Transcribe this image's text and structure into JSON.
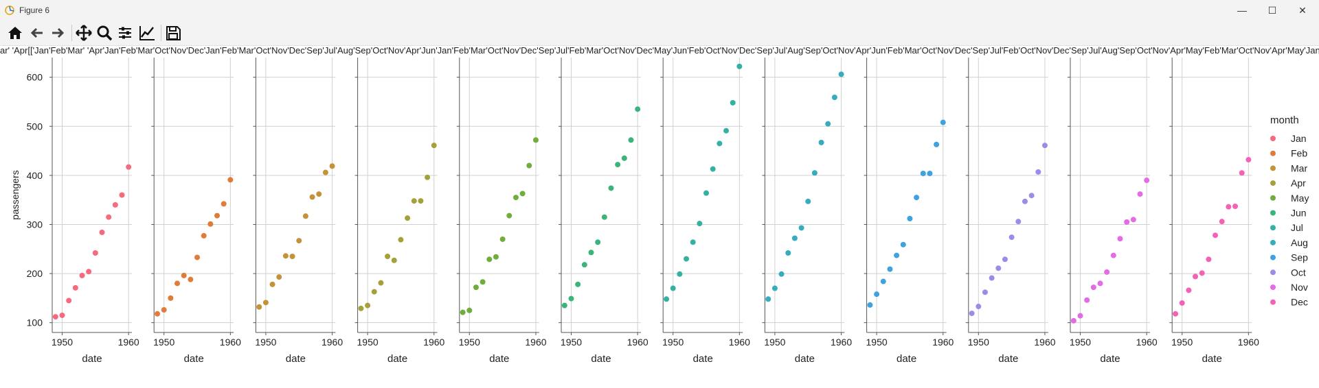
{
  "window": {
    "title": "Figure 6",
    "minimize_icon": "minimize-icon",
    "maximize_icon": "maximize-icon",
    "close_icon": "close-icon"
  },
  "toolbar": {
    "buttons": [
      "home-icon",
      "back-arrow-icon",
      "forward-arrow-icon",
      "pan-move-icon",
      "zoom-magnifier-icon",
      "configure-subplots-icon",
      "edit-axes-icon",
      "save-figure-icon"
    ]
  },
  "chart_data": {
    "type": "scatter",
    "ylabel": "passengers",
    "xlabel": "date",
    "x_ticks": [
      1950,
      1960
    ],
    "y_ticks": [
      100,
      200,
      300,
      400,
      500,
      600
    ],
    "ylim": [
      80,
      640
    ],
    "xlim": [
      1948.5,
      1960.5
    ],
    "grid": true,
    "legend": {
      "title": "month",
      "placement": "right"
    },
    "top_overlap_text": "ar' 'Apr[['Jan'Feb'Mar' 'Apr'Jan'Feb'Mar'Oct'Nov'Dec'Jan'Feb'Mar'Oct'Nov'Dec'Sep'Jul'Aug'Sep'Oct'Nov'Apr'Jun'Jan'Feb'Mar'Oct'Nov'Dec'Sep'Jul'Feb'Mar'Oct'Nov'Dec'May'Jun'Feb'Oct'Nov'Dec'Sep'Jul'Aug'Sep'Oct'Nov'Apr'Jun'Feb'Mar'Oct'Nov'Dec'Sep'Jul'Feb'Oct'Nov'Dec'Sep'Jul'Aug'Sep'Oct'Nov'Apr'May'Feb'Mar'Oct'Nov'Apr'May'Jan'Feb'Mar'Oct'Nov'Dec'Sep' 'Jul'' 'Oct' 'Nov' 'Dec'Sep' 'Oct' '",
    "series": [
      {
        "name": "Jan",
        "color": "#f7697d",
        "x": [
          1949,
          1950,
          1951,
          1952,
          1953,
          1954,
          1955,
          1956,
          1957,
          1958,
          1959,
          1960
        ],
        "y": [
          112,
          115,
          145,
          171,
          196,
          204,
          242,
          284,
          315,
          340,
          360,
          417
        ]
      },
      {
        "name": "Feb",
        "color": "#e07c3a",
        "x": [
          1949,
          1950,
          1951,
          1952,
          1953,
          1954,
          1955,
          1956,
          1957,
          1958,
          1959,
          1960
        ],
        "y": [
          118,
          126,
          150,
          180,
          196,
          188,
          233,
          277,
          301,
          318,
          342,
          391
        ]
      },
      {
        "name": "Mar",
        "color": "#c39338",
        "x": [
          1949,
          1950,
          1951,
          1952,
          1953,
          1954,
          1955,
          1956,
          1957,
          1958,
          1959,
          1960
        ],
        "y": [
          132,
          141,
          178,
          193,
          236,
          235,
          267,
          317,
          356,
          362,
          406,
          419
        ]
      },
      {
        "name": "Apr",
        "color": "#a6a03a",
        "x": [
          1949,
          1950,
          1951,
          1952,
          1953,
          1954,
          1955,
          1956,
          1957,
          1958,
          1959,
          1960
        ],
        "y": [
          129,
          135,
          163,
          181,
          235,
          227,
          269,
          313,
          348,
          348,
          396,
          461
        ]
      },
      {
        "name": "May",
        "color": "#6fad3c",
        "x": [
          1949,
          1950,
          1951,
          1952,
          1953,
          1954,
          1955,
          1956,
          1957,
          1958,
          1959,
          1960
        ],
        "y": [
          121,
          125,
          172,
          183,
          229,
          234,
          270,
          318,
          355,
          363,
          420,
          472
        ]
      },
      {
        "name": "Jun",
        "color": "#3bb47c",
        "x": [
          1949,
          1950,
          1951,
          1952,
          1953,
          1954,
          1955,
          1956,
          1957,
          1958,
          1959,
          1960
        ],
        "y": [
          135,
          149,
          178,
          218,
          243,
          264,
          315,
          374,
          422,
          435,
          472,
          535
        ]
      },
      {
        "name": "Jul",
        "color": "#35b1a3",
        "x": [
          1949,
          1950,
          1951,
          1952,
          1953,
          1954,
          1955,
          1956,
          1957,
          1958,
          1959,
          1960
        ],
        "y": [
          148,
          170,
          199,
          230,
          264,
          302,
          364,
          413,
          465,
          491,
          548,
          622
        ]
      },
      {
        "name": "Aug",
        "color": "#37acbe",
        "x": [
          1949,
          1950,
          1951,
          1952,
          1953,
          1954,
          1955,
          1956,
          1957,
          1958,
          1959,
          1960
        ],
        "y": [
          148,
          170,
          199,
          242,
          272,
          293,
          347,
          405,
          467,
          505,
          559,
          606
        ]
      },
      {
        "name": "Sep",
        "color": "#3ea2de",
        "x": [
          1949,
          1950,
          1951,
          1952,
          1953,
          1954,
          1955,
          1956,
          1957,
          1958,
          1959,
          1960
        ],
        "y": [
          136,
          158,
          184,
          209,
          237,
          259,
          312,
          355,
          404,
          404,
          463,
          508
        ]
      },
      {
        "name": "Oct",
        "color": "#9a8de8",
        "x": [
          1949,
          1950,
          1951,
          1952,
          1953,
          1954,
          1955,
          1956,
          1957,
          1958,
          1959,
          1960
        ],
        "y": [
          119,
          133,
          162,
          191,
          211,
          229,
          274,
          306,
          347,
          359,
          407,
          461
        ]
      },
      {
        "name": "Nov",
        "color": "#e46be6",
        "x": [
          1949,
          1950,
          1951,
          1952,
          1953,
          1954,
          1955,
          1956,
          1957,
          1958,
          1959,
          1960
        ],
        "y": [
          104,
          114,
          146,
          172,
          180,
          203,
          237,
          271,
          305,
          310,
          362,
          390
        ]
      },
      {
        "name": "Dec",
        "color": "#f462b6",
        "x": [
          1949,
          1950,
          1951,
          1952,
          1953,
          1954,
          1955,
          1956,
          1957,
          1958,
          1959,
          1960
        ],
        "y": [
          118,
          140,
          166,
          194,
          201,
          229,
          278,
          306,
          336,
          337,
          405,
          432
        ]
      }
    ]
  }
}
